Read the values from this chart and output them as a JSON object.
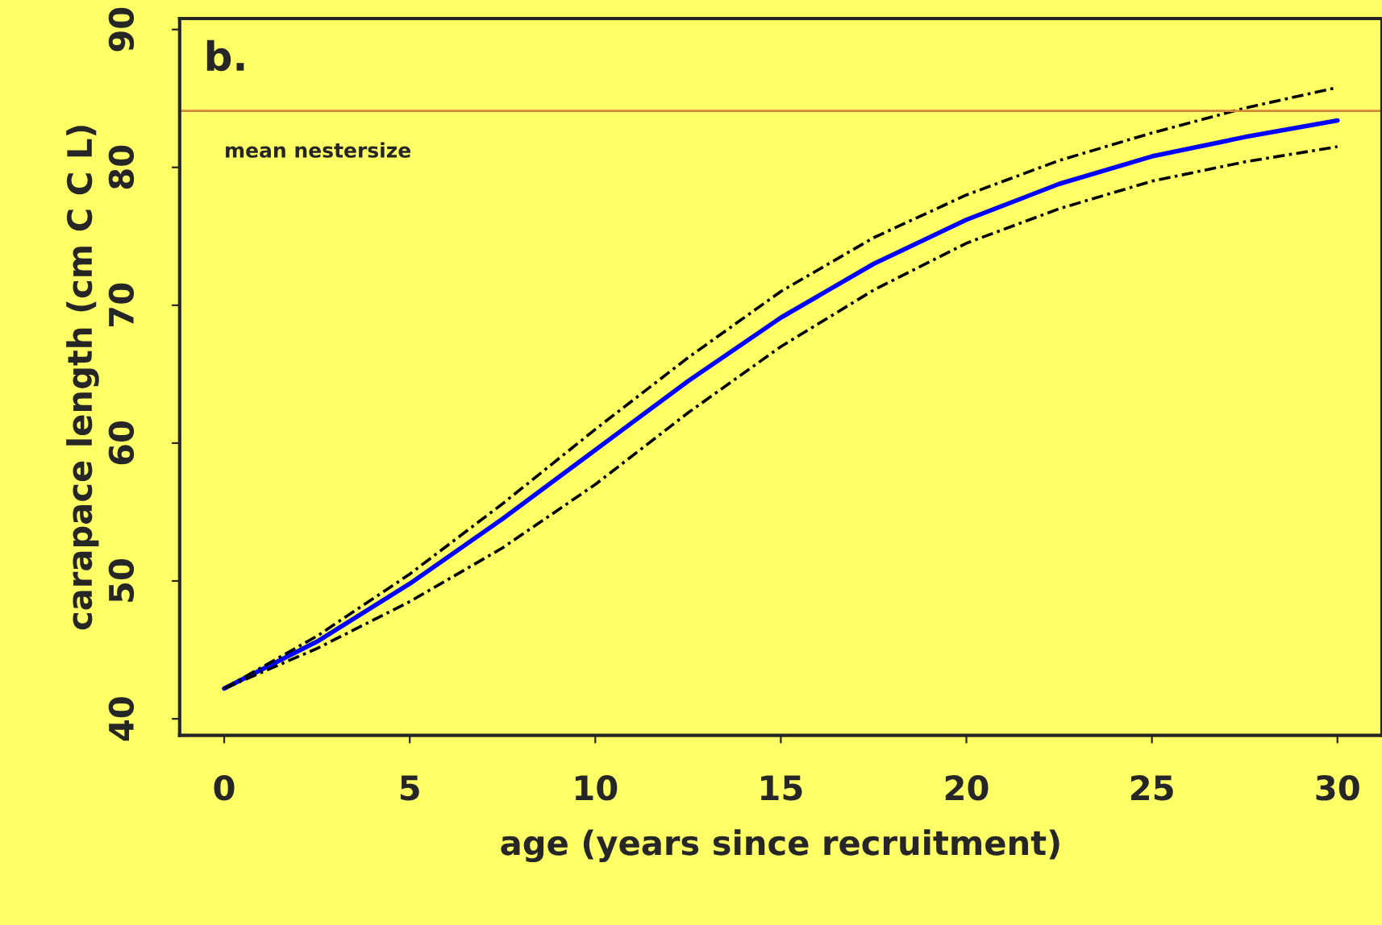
{
  "chart_data": {
    "type": "line",
    "xlabel": "age (years since recruitment)",
    "ylabel": "carapace length (cm C C L)",
    "x": [
      0,
      2.5,
      5,
      7.5,
      10,
      12.5,
      15,
      17.5,
      20,
      22.5,
      25,
      27.5,
      30
    ],
    "series": [
      {
        "color": "#0000ff",
        "line_style": "solid",
        "values": [
          42.2,
          45.6,
          49.8,
          54.5,
          59.5,
          64.5,
          69.1,
          73.0,
          76.2,
          78.8,
          80.8,
          82.2,
          83.4
        ]
      },
      {
        "color": "#000000",
        "line_style": "dashed",
        "values": [
          42.2,
          46.0,
          50.5,
          55.6,
          61.0,
          66.2,
          71.0,
          74.9,
          78.0,
          80.5,
          82.5,
          84.3,
          85.8
        ]
      },
      {
        "color": "#000000",
        "line_style": "dashed",
        "values": [
          42.2,
          45.1,
          48.5,
          52.4,
          57.0,
          62.2,
          67.0,
          71.1,
          74.5,
          77.0,
          79.0,
          80.4,
          81.5
        ]
      }
    ],
    "ref_lines": [
      {
        "axis": "y",
        "value": 84.1,
        "label": "mean nestersize",
        "color": "#d2873c"
      }
    ],
    "annotations": [
      "b."
    ],
    "xlim": [
      -1.2,
      31.2
    ],
    "ylim": [
      38.8,
      90.8
    ],
    "xticks": [
      0,
      5,
      10,
      15,
      20,
      25,
      30
    ],
    "yticks": [
      40,
      50,
      60,
      70,
      80,
      90
    ],
    "grid": false,
    "legend": false,
    "marker": "none"
  }
}
